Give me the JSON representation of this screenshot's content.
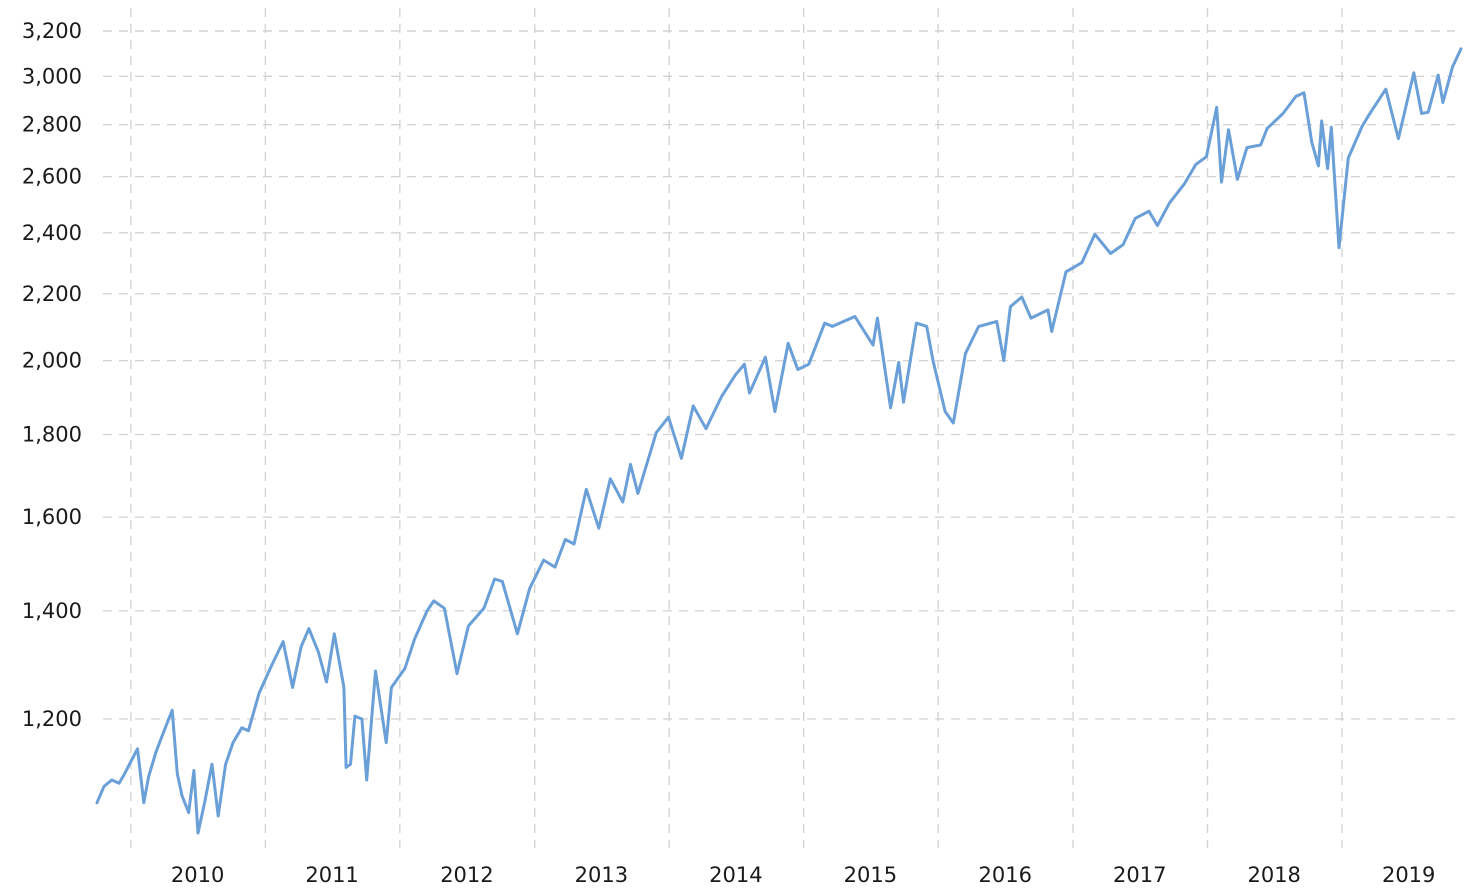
{
  "colors": {
    "series": "#6a9fd8",
    "grid": "#d4d4d4",
    "text": "#1a1a1a",
    "background": "#ffffff"
  },
  "chart_data": {
    "type": "line",
    "title": "",
    "xlabel": "",
    "ylabel": "",
    "y_scale": "log",
    "ylim": [
      1080,
      3200
    ],
    "xlim": [
      "2009-10-01",
      "2019-11-20"
    ],
    "grid": true,
    "legend": "none",
    "y_ticks": [
      {
        "value": 1200,
        "label": "1,200"
      },
      {
        "value": 1400,
        "label": "1,400"
      },
      {
        "value": 1600,
        "label": "1,600"
      },
      {
        "value": 1800,
        "label": "1,800"
      },
      {
        "value": 2000,
        "label": "2,000"
      },
      {
        "value": 2200,
        "label": "2,200"
      },
      {
        "value": 2400,
        "label": "2,400"
      },
      {
        "value": 2600,
        "label": "2,600"
      },
      {
        "value": 2800,
        "label": "2,800"
      },
      {
        "value": 3000,
        "label": "3,000"
      },
      {
        "value": 3200,
        "label": "3,200"
      }
    ],
    "x_ticks": [
      {
        "value": "2010-07-01",
        "label": "2010"
      },
      {
        "value": "2011-07-01",
        "label": "2011"
      },
      {
        "value": "2012-07-01",
        "label": "2012"
      },
      {
        "value": "2013-07-01",
        "label": "2013"
      },
      {
        "value": "2014-07-01",
        "label": "2014"
      },
      {
        "value": "2015-07-01",
        "label": "2015"
      },
      {
        "value": "2016-07-01",
        "label": "2016"
      },
      {
        "value": "2017-07-01",
        "label": "2017"
      },
      {
        "value": "2018-07-01",
        "label": "2018"
      },
      {
        "value": "2019-07-01",
        "label": "2019"
      }
    ],
    "x_gridlines": [
      "2010-01-01",
      "2011-01-01",
      "2012-01-01",
      "2013-01-01",
      "2014-01-01",
      "2015-01-01",
      "2016-01-01",
      "2017-01-01",
      "2018-01-01",
      "2019-01-01"
    ],
    "series": [
      {
        "points": [
          [
            "2009-10-01",
            1065
          ],
          [
            "2009-10-20",
            1090
          ],
          [
            "2009-11-10",
            1100
          ],
          [
            "2009-11-30",
            1095
          ],
          [
            "2009-12-15",
            1110
          ],
          [
            "2010-01-06",
            1135
          ],
          [
            "2010-01-19",
            1150
          ],
          [
            "2010-02-05",
            1065
          ],
          [
            "2010-02-18",
            1105
          ],
          [
            "2010-03-10",
            1145
          ],
          [
            "2010-04-01",
            1180
          ],
          [
            "2010-04-23",
            1215
          ],
          [
            "2010-05-07",
            1110
          ],
          [
            "2010-05-20",
            1075
          ],
          [
            "2010-06-07",
            1050
          ],
          [
            "2010-06-21",
            1115
          ],
          [
            "2010-07-02",
            1020
          ],
          [
            "2010-07-20",
            1065
          ],
          [
            "2010-08-09",
            1125
          ],
          [
            "2010-08-26",
            1045
          ],
          [
            "2010-09-15",
            1125
          ],
          [
            "2010-10-05",
            1160
          ],
          [
            "2010-10-29",
            1185
          ],
          [
            "2010-11-16",
            1180
          ],
          [
            "2010-12-15",
            1245
          ],
          [
            "2011-01-18",
            1295
          ],
          [
            "2011-02-18",
            1340
          ],
          [
            "2011-03-16",
            1255
          ],
          [
            "2011-04-08",
            1330
          ],
          [
            "2011-04-29",
            1365
          ],
          [
            "2011-05-25",
            1320
          ],
          [
            "2011-06-16",
            1265
          ],
          [
            "2011-07-07",
            1355
          ],
          [
            "2011-08-02",
            1255
          ],
          [
            "2011-08-08",
            1120
          ],
          [
            "2011-08-20",
            1125
          ],
          [
            "2011-09-01",
            1205
          ],
          [
            "2011-09-20",
            1200
          ],
          [
            "2011-10-03",
            1100
          ],
          [
            "2011-10-27",
            1285
          ],
          [
            "2011-11-25",
            1160
          ],
          [
            "2011-12-09",
            1255
          ],
          [
            "2012-01-15",
            1290
          ],
          [
            "2012-02-10",
            1345
          ],
          [
            "2012-03-15",
            1400
          ],
          [
            "2012-04-02",
            1420
          ],
          [
            "2012-05-01",
            1405
          ],
          [
            "2012-06-04",
            1280
          ],
          [
            "2012-07-05",
            1370
          ],
          [
            "2012-08-16",
            1405
          ],
          [
            "2012-09-14",
            1465
          ],
          [
            "2012-10-05",
            1460
          ],
          [
            "2012-11-15",
            1355
          ],
          [
            "2012-12-18",
            1445
          ],
          [
            "2013-01-25",
            1505
          ],
          [
            "2013-02-25",
            1490
          ],
          [
            "2013-03-25",
            1550
          ],
          [
            "2013-04-18",
            1540
          ],
          [
            "2013-05-21",
            1665
          ],
          [
            "2013-06-24",
            1575
          ],
          [
            "2013-07-25",
            1690
          ],
          [
            "2013-08-28",
            1635
          ],
          [
            "2013-09-18",
            1725
          ],
          [
            "2013-10-08",
            1655
          ],
          [
            "2013-11-27",
            1805
          ],
          [
            "2013-12-30",
            1845
          ],
          [
            "2014-02-03",
            1740
          ],
          [
            "2014-03-07",
            1875
          ],
          [
            "2014-04-11",
            1815
          ],
          [
            "2014-05-23",
            1900
          ],
          [
            "2014-06-30",
            1960
          ],
          [
            "2014-07-24",
            1990
          ],
          [
            "2014-08-07",
            1910
          ],
          [
            "2014-09-19",
            2010
          ],
          [
            "2014-10-15",
            1860
          ],
          [
            "2014-11-20",
            2050
          ],
          [
            "2014-12-16",
            1975
          ],
          [
            "2015-01-15",
            1990
          ],
          [
            "2015-02-27",
            2110
          ],
          [
            "2015-03-20",
            2100
          ],
          [
            "2015-05-20",
            2130
          ],
          [
            "2015-07-08",
            2045
          ],
          [
            "2015-07-20",
            2125
          ],
          [
            "2015-08-25",
            1870
          ],
          [
            "2015-09-16",
            1995
          ],
          [
            "2015-09-29",
            1885
          ],
          [
            "2015-11-03",
            2110
          ],
          [
            "2015-12-01",
            2100
          ],
          [
            "2015-12-18",
            2000
          ],
          [
            "2016-01-20",
            1860
          ],
          [
            "2016-02-11",
            1830
          ],
          [
            "2016-03-15",
            2020
          ],
          [
            "2016-04-20",
            2100
          ],
          [
            "2016-06-08",
            2115
          ],
          [
            "2016-06-27",
            2000
          ],
          [
            "2016-07-15",
            2160
          ],
          [
            "2016-08-15",
            2190
          ],
          [
            "2016-09-09",
            2125
          ],
          [
            "2016-10-25",
            2150
          ],
          [
            "2016-11-04",
            2085
          ],
          [
            "2016-12-13",
            2270
          ],
          [
            "2017-01-25",
            2300
          ],
          [
            "2017-03-01",
            2395
          ],
          [
            "2017-04-13",
            2330
          ],
          [
            "2017-05-17",
            2360
          ],
          [
            "2017-06-19",
            2450
          ],
          [
            "2017-07-26",
            2475
          ],
          [
            "2017-08-18",
            2425
          ],
          [
            "2017-09-20",
            2505
          ],
          [
            "2017-10-31",
            2575
          ],
          [
            "2017-11-30",
            2645
          ],
          [
            "2017-12-29",
            2675
          ],
          [
            "2018-01-26",
            2870
          ],
          [
            "2018-02-08",
            2580
          ],
          [
            "2018-02-27",
            2780
          ],
          [
            "2018-03-23",
            2590
          ],
          [
            "2018-04-18",
            2710
          ],
          [
            "2018-05-25",
            2720
          ],
          [
            "2018-06-12",
            2785
          ],
          [
            "2018-07-25",
            2845
          ],
          [
            "2018-08-29",
            2915
          ],
          [
            "2018-09-20",
            2930
          ],
          [
            "2018-10-11",
            2730
          ],
          [
            "2018-10-29",
            2640
          ],
          [
            "2018-11-07",
            2815
          ],
          [
            "2018-11-23",
            2630
          ],
          [
            "2018-12-03",
            2790
          ],
          [
            "2018-12-24",
            2350
          ],
          [
            "2019-01-18",
            2670
          ],
          [
            "2019-02-25",
            2795
          ],
          [
            "2019-03-20",
            2850
          ],
          [
            "2019-04-30",
            2945
          ],
          [
            "2019-06-03",
            2745
          ],
          [
            "2019-07-15",
            3015
          ],
          [
            "2019-08-05",
            2845
          ],
          [
            "2019-08-23",
            2850
          ],
          [
            "2019-09-19",
            3005
          ],
          [
            "2019-10-02",
            2890
          ],
          [
            "2019-10-28",
            3040
          ],
          [
            "2019-11-20",
            3120
          ]
        ]
      }
    ]
  }
}
